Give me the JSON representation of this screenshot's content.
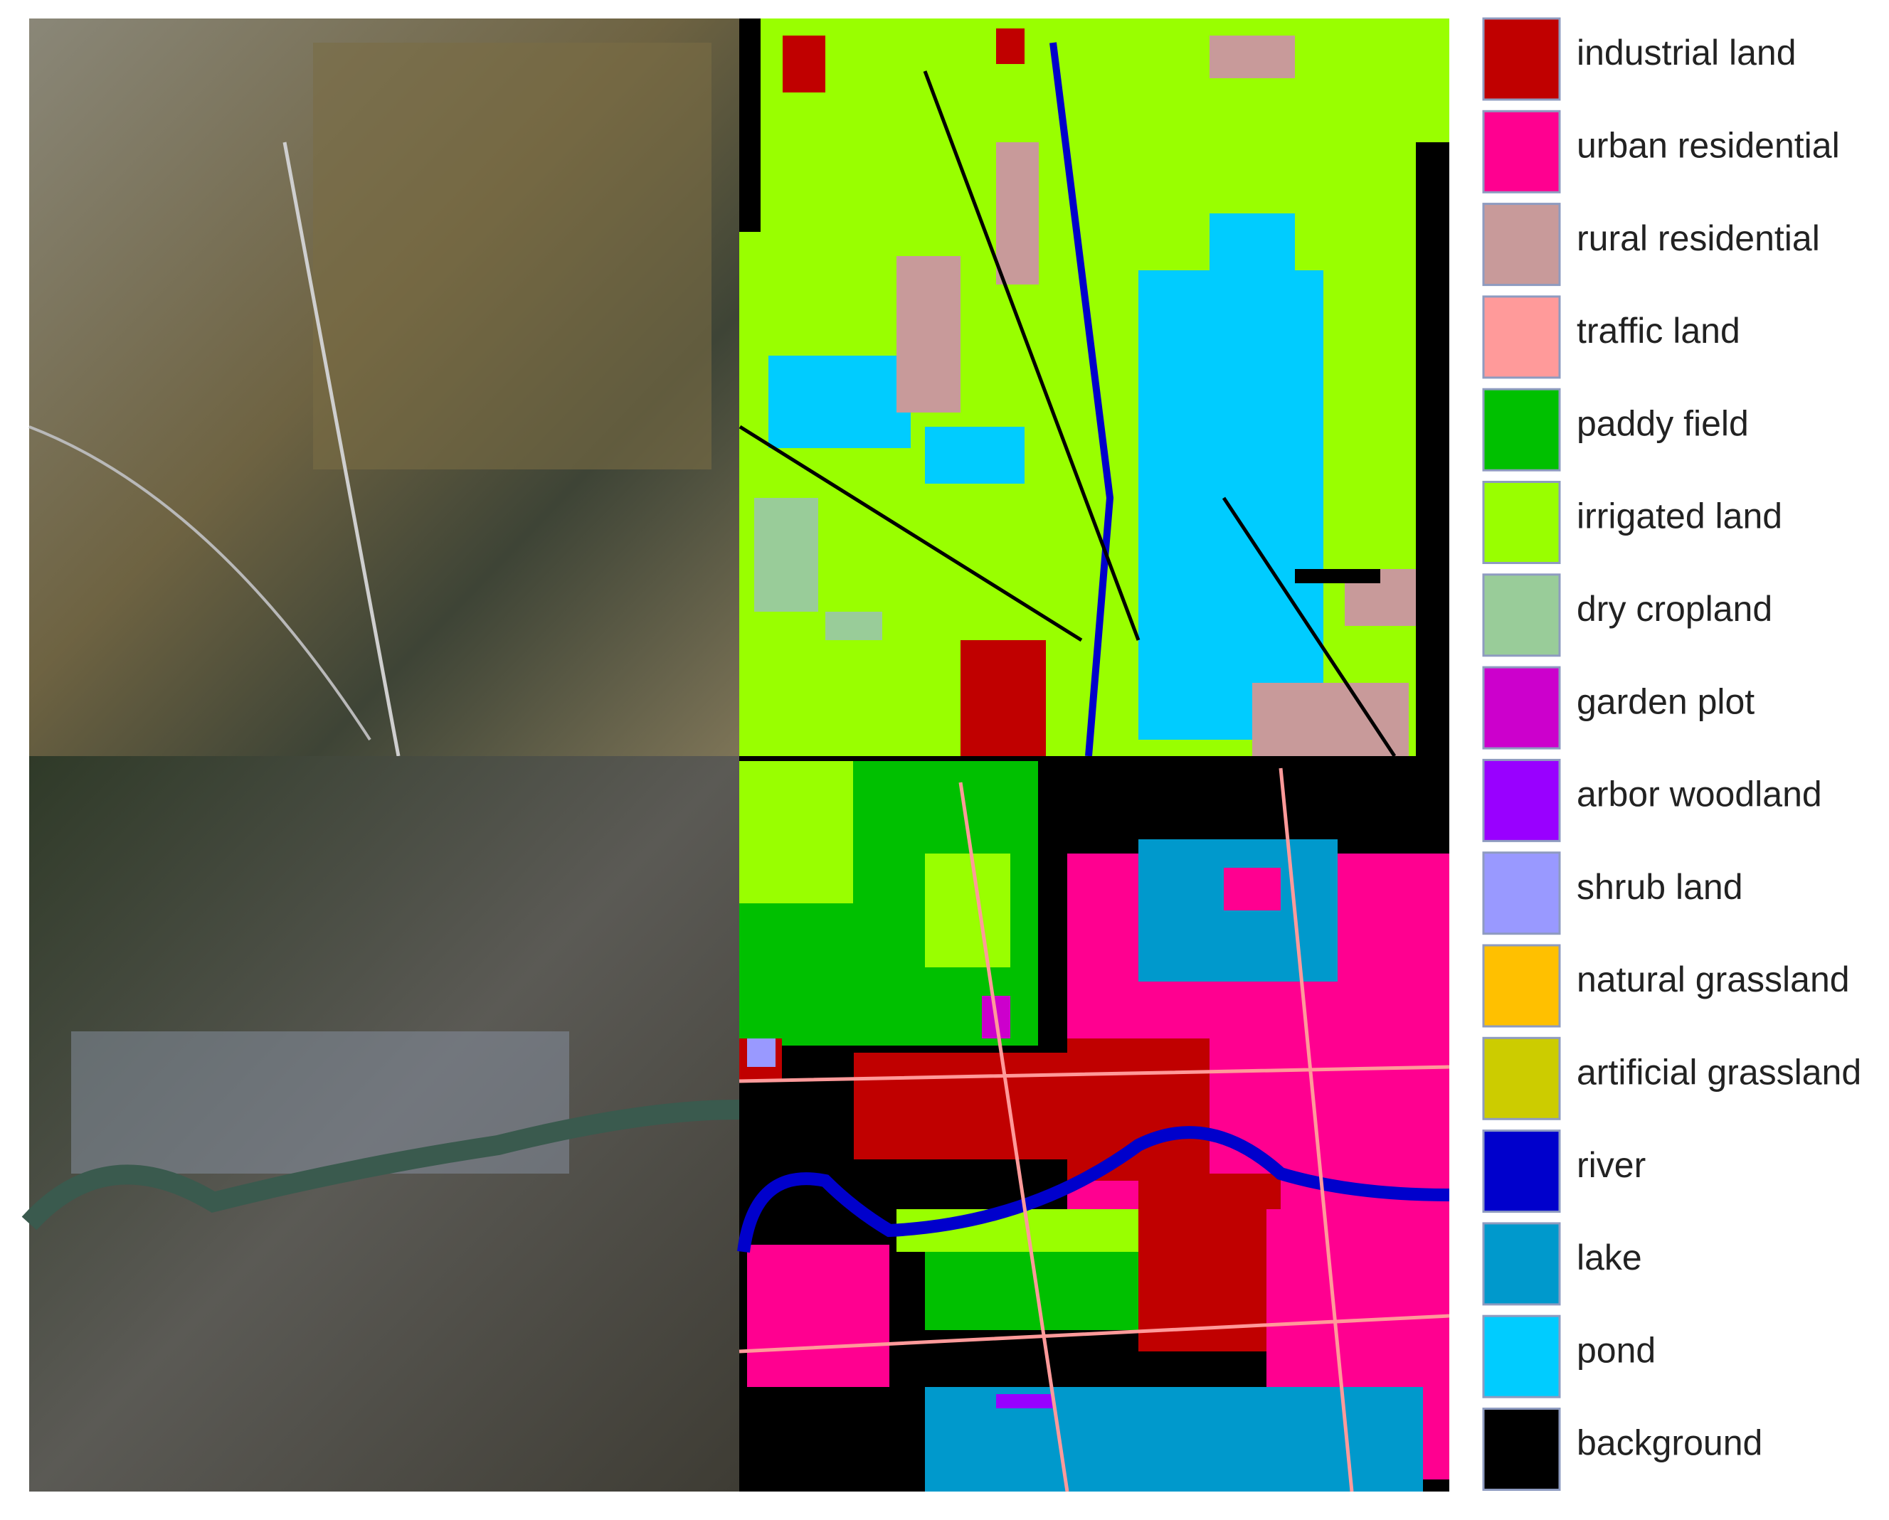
{
  "legend": {
    "items": [
      {
        "label": "industrial land",
        "color": "#c00000"
      },
      {
        "label": "urban residential",
        "color": "#ff0090"
      },
      {
        "label": "rural residential",
        "color": "#c89a9a"
      },
      {
        "label": "traffic land",
        "color": "#ff9a9a"
      },
      {
        "label": "paddy field",
        "color": "#00c000"
      },
      {
        "label": "irrigated land",
        "color": "#99ff00"
      },
      {
        "label": "dry cropland",
        "color": "#99cc99"
      },
      {
        "label": "garden plot",
        "color": "#cc00cc"
      },
      {
        "label": "arbor woodland",
        "color": "#9900ff"
      },
      {
        "label": "shrub land",
        "color": "#9999ff"
      },
      {
        "label": "natural grassland",
        "color": "#ffc000"
      },
      {
        "label": "artificial grassland",
        "color": "#cccc00"
      },
      {
        "label": "river",
        "color": "#0000cc"
      },
      {
        "label": "lake",
        "color": "#0099cc"
      },
      {
        "label": "pond",
        "color": "#00ccff"
      },
      {
        "label": "background",
        "color": "#000000"
      }
    ]
  }
}
